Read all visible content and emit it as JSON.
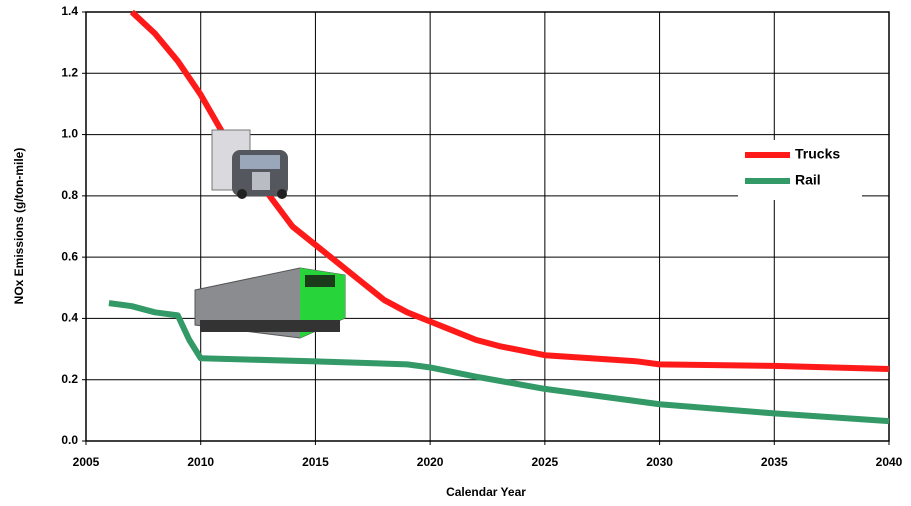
{
  "chart_data": {
    "type": "line",
    "x_label": "Calendar Year",
    "y_label": "NOx Emissions (g/ton-mile)",
    "xlim": [
      2005,
      2040
    ],
    "xticks": [
      2005,
      2010,
      2015,
      2020,
      2025,
      2030,
      2035,
      2040
    ],
    "ylim": [
      0,
      1.4
    ],
    "yticks": [
      {
        "value": 0,
        "label": "0.0"
      },
      0.2,
      0.4,
      0.6,
      0.8,
      {
        "value": 1,
        "label": "1.0"
      },
      1.2,
      1.4
    ],
    "grid": true,
    "legend": "right",
    "series": [
      {
        "name": "Trucks",
        "color": "#ff1a1a",
        "x": [
          2007,
          2008,
          2009,
          2010,
          2011,
          2012,
          2013,
          2014,
          2015,
          2016,
          2017,
          2018,
          2019,
          2020,
          2021,
          2022,
          2023,
          2024,
          2025,
          2027,
          2029,
          2030,
          2035,
          2040
        ],
        "values": [
          1.4,
          1.33,
          1.24,
          1.13,
          1.0,
          0.9,
          0.8,
          0.7,
          0.64,
          0.58,
          0.52,
          0.46,
          0.42,
          0.39,
          0.36,
          0.33,
          0.31,
          0.295,
          0.28,
          0.27,
          0.26,
          0.25,
          0.245,
          0.235
        ]
      },
      {
        "name": "Rail",
        "color": "#339966",
        "x": [
          2006,
          2007,
          2008,
          2009,
          2009.5,
          2010,
          2015,
          2019,
          2020,
          2022,
          2025,
          2030,
          2035,
          2040
        ],
        "values": [
          0.45,
          0.44,
          0.42,
          0.41,
          0.33,
          0.27,
          0.26,
          0.25,
          0.24,
          0.21,
          0.17,
          0.12,
          0.09,
          0.065
        ]
      }
    ]
  }
}
